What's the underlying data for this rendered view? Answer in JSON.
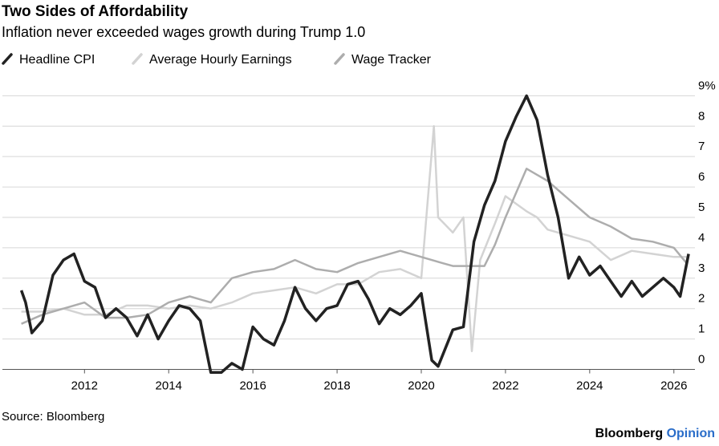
{
  "chart_data": {
    "type": "line",
    "title": "Two Sides of Affordability",
    "subtitle": "Inflation never exceeded wages growth during Trump 1.0",
    "xlim": [
      2010.05,
      2026.5
    ],
    "xticks": [
      2012,
      2014,
      2016,
      2018,
      2020,
      2022,
      2024,
      2026
    ],
    "ylim": [
      -0.25,
      9.3
    ],
    "yticks": [
      0,
      1,
      2,
      3,
      4,
      5,
      6,
      7,
      8,
      {
        "value": 9,
        "label": "9%"
      }
    ],
    "grid": true,
    "series": [
      {
        "name": "Average Hourly Earnings",
        "color": "#d3d3d3",
        "x": [
          2010.5,
          2011,
          2011.5,
          2012,
          2012.5,
          2013,
          2013.5,
          2014,
          2014.5,
          2015,
          2015.5,
          2016,
          2016.5,
          2017,
          2017.5,
          2018,
          2018.5,
          2019,
          2019.5,
          2020,
          2020.3,
          2020.4,
          2020.75,
          2021,
          2021.2,
          2021.4,
          2021.75,
          2022,
          2022.5,
          2022.75,
          2023,
          2023.5,
          2024,
          2024.5,
          2025,
          2025.5,
          2026,
          2026.3
        ],
        "values": [
          1.9,
          1.9,
          2.0,
          1.8,
          1.8,
          2.1,
          2.1,
          2.0,
          2.1,
          2.0,
          2.2,
          2.5,
          2.6,
          2.7,
          2.5,
          2.8,
          2.8,
          3.2,
          3.3,
          3.0,
          8.0,
          5.0,
          4.5,
          5.0,
          0.6,
          3.6,
          4.8,
          5.7,
          5.2,
          5.0,
          4.6,
          4.4,
          4.2,
          3.6,
          3.9,
          3.8,
          3.7,
          3.7
        ]
      },
      {
        "name": "Wage Tracker",
        "color": "#adadad",
        "x": [
          2010.5,
          2011,
          2011.5,
          2012,
          2012.5,
          2013,
          2013.5,
          2014,
          2014.5,
          2015,
          2015.5,
          2016,
          2016.5,
          2017,
          2017.5,
          2018,
          2018.5,
          2019,
          2019.5,
          2020,
          2020.5,
          2020.75,
          2021,
          2021.5,
          2021.75,
          2022,
          2022.5,
          2022.75,
          2023,
          2023.5,
          2024,
          2024.5,
          2025,
          2025.5,
          2026,
          2026.3
        ],
        "values": [
          1.5,
          1.8,
          2.0,
          2.2,
          1.7,
          1.7,
          1.8,
          2.2,
          2.4,
          2.2,
          3.0,
          3.2,
          3.3,
          3.6,
          3.3,
          3.2,
          3.5,
          3.7,
          3.9,
          3.7,
          3.5,
          3.4,
          3.4,
          3.4,
          4.1,
          5.0,
          6.6,
          6.4,
          6.2,
          5.6,
          5.0,
          4.7,
          4.3,
          4.2,
          4.0,
          3.5
        ]
      },
      {
        "name": "Headline CPI",
        "color": "#222222",
        "x": [
          2010.5,
          2010.6,
          2010.75,
          2011,
          2011.25,
          2011.5,
          2011.75,
          2012,
          2012.25,
          2012.5,
          2012.75,
          2013,
          2013.25,
          2013.5,
          2013.75,
          2014,
          2014.25,
          2014.5,
          2014.75,
          2015,
          2015.25,
          2015.5,
          2015.75,
          2016,
          2016.25,
          2016.5,
          2016.75,
          2017,
          2017.25,
          2017.5,
          2017.75,
          2018,
          2018.25,
          2018.5,
          2018.75,
          2019,
          2019.25,
          2019.5,
          2019.75,
          2020,
          2020.25,
          2020.4,
          2020.75,
          2021,
          2021.25,
          2021.5,
          2021.75,
          2022,
          2022.25,
          2022.5,
          2022.75,
          2023,
          2023.25,
          2023.5,
          2023.75,
          2024,
          2024.25,
          2024.5,
          2024.75,
          2025,
          2025.25,
          2025.5,
          2025.75,
          2026,
          2026.15,
          2026.35
        ],
        "values": [
          2.6,
          2.2,
          1.2,
          1.6,
          3.1,
          3.6,
          3.8,
          2.9,
          2.7,
          1.7,
          2.0,
          1.7,
          1.1,
          1.8,
          1.0,
          1.6,
          2.1,
          2.0,
          1.6,
          -0.1,
          -0.1,
          0.2,
          0.0,
          1.4,
          1.0,
          0.8,
          1.6,
          2.7,
          2.0,
          1.6,
          2.0,
          2.1,
          2.8,
          2.9,
          2.3,
          1.5,
          2.0,
          1.8,
          2.1,
          2.5,
          0.3,
          0.1,
          1.3,
          1.4,
          4.2,
          5.4,
          6.2,
          7.5,
          8.3,
          9.0,
          8.2,
          6.4,
          5.0,
          3.0,
          3.7,
          3.1,
          3.4,
          2.9,
          2.4,
          2.9,
          2.4,
          2.7,
          3.0,
          2.7,
          2.4,
          3.8
        ]
      }
    ],
    "legend_order": [
      2,
      0,
      1
    ]
  },
  "source": "Source: Bloomberg",
  "brand": {
    "name": "Bloomberg",
    "suffix": "Opinion"
  }
}
